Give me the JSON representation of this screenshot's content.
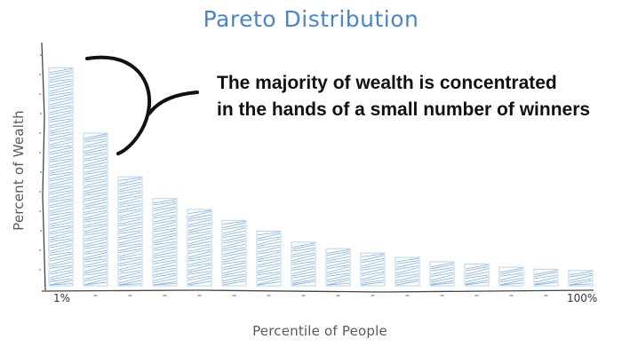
{
  "chart_data": {
    "type": "bar",
    "title": "Pareto Distribution",
    "xlabel": "Percentile of People",
    "ylabel": "Percent of Wealth",
    "categories": [
      "1%",
      "",
      "",
      "",
      "",
      "",
      "",
      "",
      "",
      "",
      "",
      "",
      "",
      "",
      "",
      "100%"
    ],
    "values": [
      100,
      70,
      50,
      40,
      35,
      30,
      25,
      20,
      17,
      15,
      13,
      11,
      10,
      8.5,
      7.5,
      7
    ],
    "ylim": [
      0,
      105
    ],
    "tick_labels": {
      "first": "1%",
      "last": "100%"
    },
    "annotation": {
      "line1": "The majority of wealth is concentrated",
      "line2": "in the hands of a small number of winners"
    },
    "colors": {
      "title": "#4a86c7",
      "bar_hatch": "#8fb8e3",
      "bar_outline": "#b7d2ee",
      "annotation": "#111111",
      "axis": "#444444"
    },
    "grid": false,
    "legend": "none"
  }
}
